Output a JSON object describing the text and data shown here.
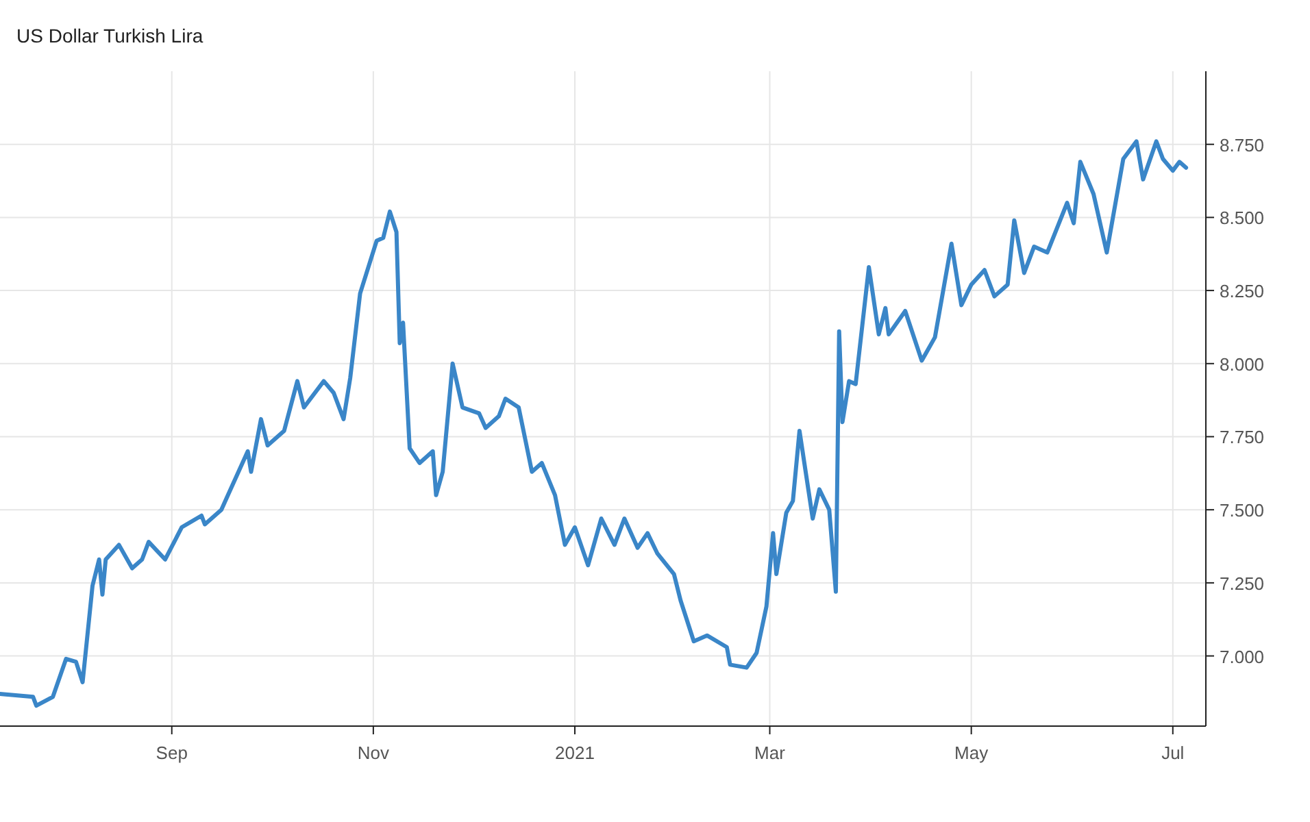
{
  "chart_data": {
    "type": "line",
    "title": "US Dollar Turkish Lira",
    "x": [
      "2020-07-11",
      "2020-07-21",
      "2020-07-22",
      "2020-07-27",
      "2020-07-31",
      "2020-08-03",
      "2020-08-05",
      "2020-08-08",
      "2020-08-10",
      "2020-08-11",
      "2020-08-12",
      "2020-08-16",
      "2020-08-20",
      "2020-08-23",
      "2020-08-25",
      "2020-08-30",
      "2020-09-04",
      "2020-09-10",
      "2020-09-11",
      "2020-09-16",
      "2020-09-18",
      "2020-09-24",
      "2020-09-25",
      "2020-09-28",
      "2020-09-30",
      "2020-10-05",
      "2020-10-09",
      "2020-10-11",
      "2020-10-17",
      "2020-10-20",
      "2020-10-23",
      "2020-10-25",
      "2020-10-28",
      "2020-11-02",
      "2020-11-04",
      "2020-11-06",
      "2020-11-08",
      "2020-11-09",
      "2020-11-10",
      "2020-11-12",
      "2020-11-15",
      "2020-11-19",
      "2020-11-20",
      "2020-11-22",
      "2020-11-25",
      "2020-11-28",
      "2020-12-03",
      "2020-12-05",
      "2020-12-09",
      "2020-12-11",
      "2020-12-15",
      "2020-12-19",
      "2020-12-22",
      "2020-12-26",
      "2020-12-29",
      "2021-01-01",
      "2021-01-05",
      "2021-01-09",
      "2021-01-13",
      "2021-01-16",
      "2021-01-20",
      "2021-01-23",
      "2021-01-26",
      "2021-01-31",
      "2021-02-02",
      "2021-02-06",
      "2021-02-10",
      "2021-02-16",
      "2021-02-17",
      "2021-02-22",
      "2021-02-25",
      "2021-02-28",
      "2021-03-02",
      "2021-03-03",
      "2021-03-06",
      "2021-03-08",
      "2021-03-10",
      "2021-03-14",
      "2021-03-16",
      "2021-03-19",
      "2021-03-21",
      "2021-03-22",
      "2021-03-23",
      "2021-03-25",
      "2021-03-27",
      "2021-03-29",
      "2021-03-31",
      "2021-04-03",
      "2021-04-05",
      "2021-04-06",
      "2021-04-11",
      "2021-04-16",
      "2021-04-20",
      "2021-04-25",
      "2021-04-28",
      "2021-05-01",
      "2021-05-05",
      "2021-05-08",
      "2021-05-12",
      "2021-05-14",
      "2021-05-17",
      "2021-05-20",
      "2021-05-24",
      "2021-05-30",
      "2021-06-01",
      "2021-06-03",
      "2021-06-07",
      "2021-06-11",
      "2021-06-16",
      "2021-06-20",
      "2021-06-22",
      "2021-06-26",
      "2021-06-28",
      "2021-07-01",
      "2021-07-03",
      "2021-07-05"
    ],
    "series": [
      {
        "color": "#3a86c8",
        "values": [
          6.87,
          6.86,
          6.83,
          6.86,
          6.99,
          6.98,
          6.91,
          7.24,
          7.33,
          7.21,
          7.33,
          7.38,
          7.3,
          7.33,
          7.39,
          7.33,
          7.44,
          7.48,
          7.45,
          7.5,
          7.55,
          7.7,
          7.63,
          7.81,
          7.72,
          7.77,
          7.94,
          7.85,
          7.94,
          7.9,
          7.81,
          7.95,
          8.24,
          8.42,
          8.43,
          8.52,
          8.45,
          8.07,
          8.14,
          7.71,
          7.66,
          7.7,
          7.55,
          7.63,
          8.0,
          7.85,
          7.83,
          7.78,
          7.82,
          7.88,
          7.85,
          7.63,
          7.66,
          7.55,
          7.38,
          7.44,
          7.31,
          7.47,
          7.38,
          7.47,
          7.37,
          7.42,
          7.35,
          7.28,
          7.19,
          7.05,
          7.07,
          7.03,
          6.97,
          6.96,
          7.01,
          7.17,
          7.42,
          7.28,
          7.49,
          7.53,
          7.77,
          7.47,
          7.57,
          7.5,
          7.22,
          8.11,
          7.8,
          7.94,
          7.93,
          8.13,
          8.33,
          8.1,
          8.19,
          8.1,
          8.18,
          8.01,
          8.09,
          8.41,
          8.2,
          8.27,
          8.32,
          8.23,
          8.27,
          8.49,
          8.31,
          8.4,
          8.38,
          8.55,
          8.48,
          8.69,
          8.58,
          8.38,
          8.7,
          8.76,
          8.63,
          8.76,
          8.7,
          8.66,
          8.69,
          8.67
        ]
      }
    ],
    "xlim": [
      "2020-07-11",
      "2021-07-11"
    ],
    "xticks": [
      {
        "value": "2020-09-01",
        "label": "Sep"
      },
      {
        "value": "2020-11-01",
        "label": "Nov"
      },
      {
        "value": "2021-01-01",
        "label": "2021"
      },
      {
        "value": "2021-03-01",
        "label": "Mar"
      },
      {
        "value": "2021-05-01",
        "label": "May"
      },
      {
        "value": "2021-07-01",
        "label": "Jul"
      }
    ],
    "ylim": [
      6.76,
      9.0
    ],
    "yticks": [
      {
        "value": 7,
        "label": "7.000"
      },
      {
        "value": 7.25,
        "label": "7.250"
      },
      {
        "value": 7.5,
        "label": "7.500"
      },
      {
        "value": 7.75,
        "label": "7.750"
      },
      {
        "value": 8,
        "label": "8.000"
      },
      {
        "value": 8.25,
        "label": "8.250"
      },
      {
        "value": 8.5,
        "label": "8.500"
      },
      {
        "value": 8.75,
        "label": "8.750"
      }
    ],
    "grid": true,
    "marker": "none",
    "line_style": "solid"
  }
}
